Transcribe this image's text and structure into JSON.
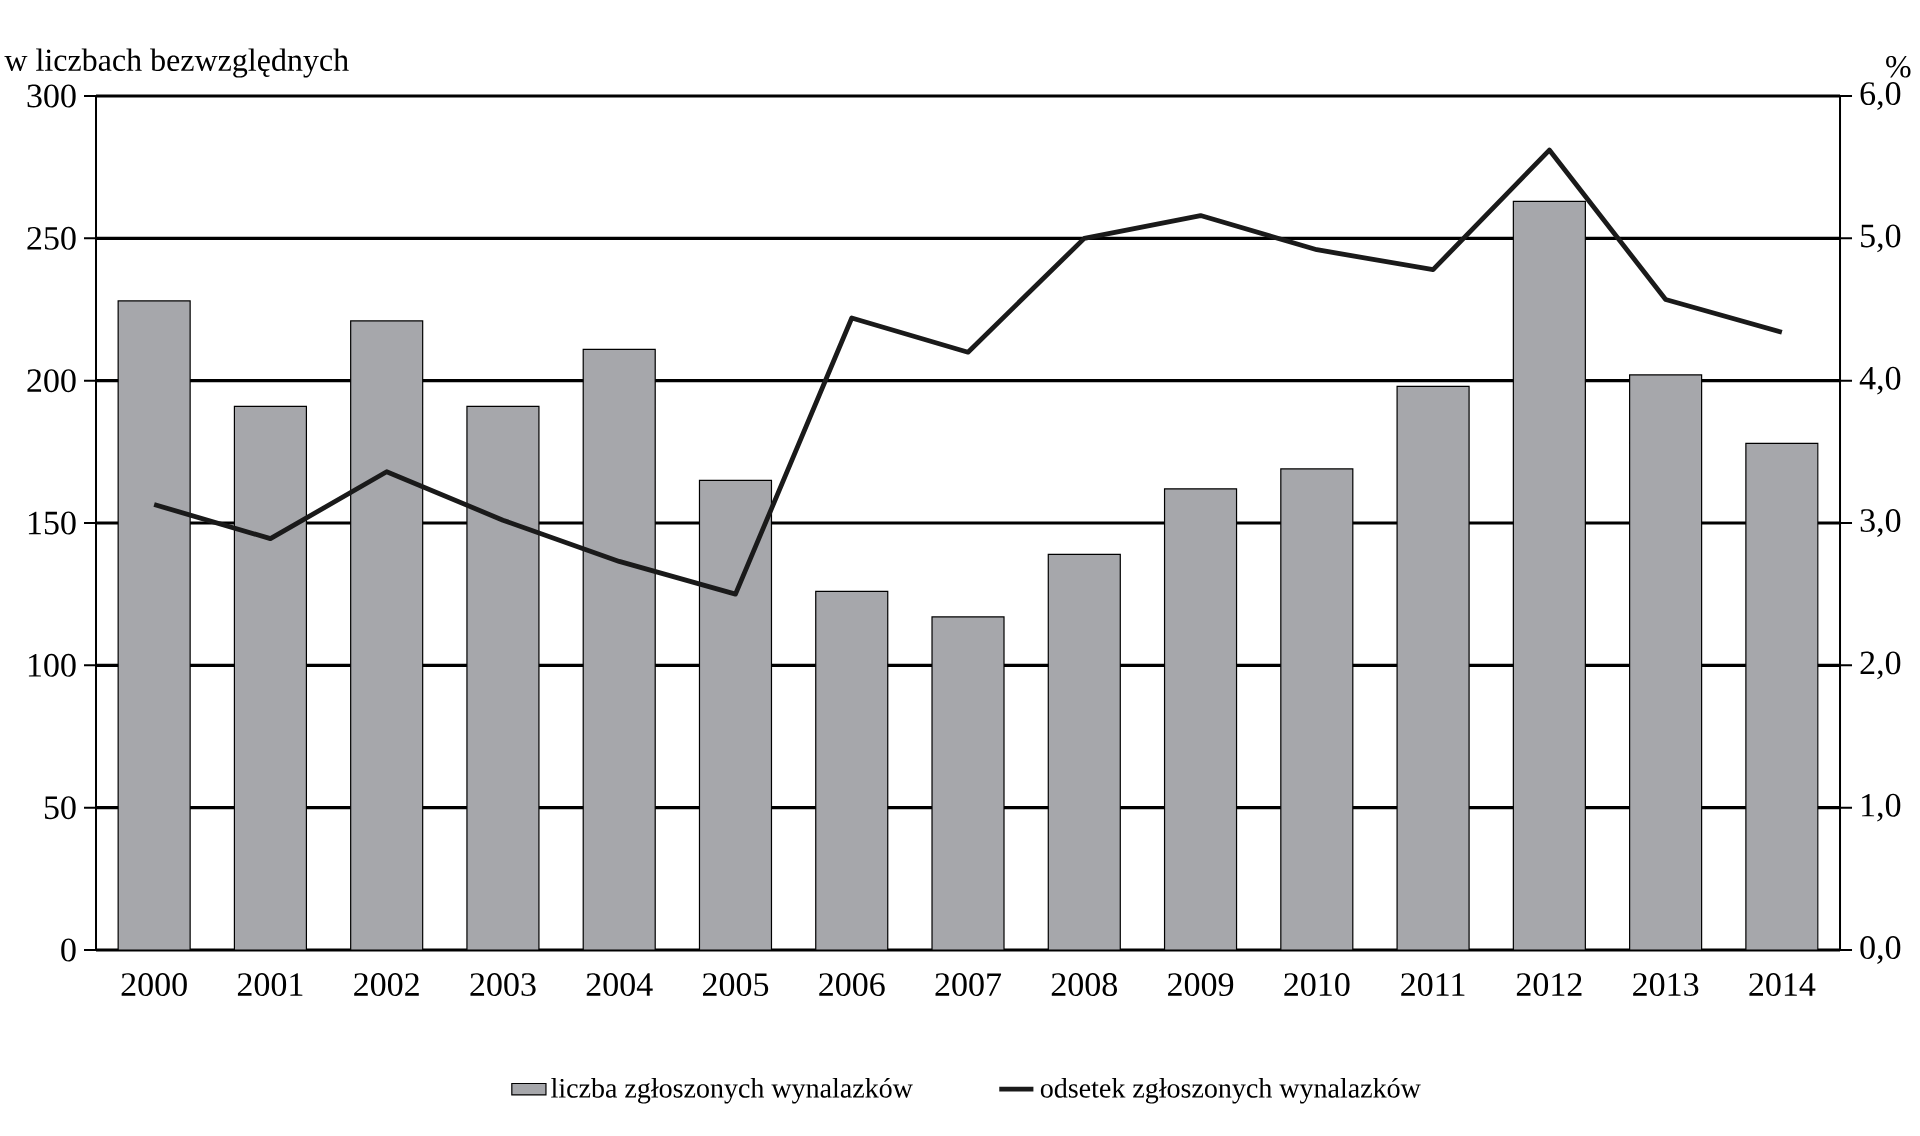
{
  "chart_data": {
    "type": "bar",
    "categories": [
      "2000",
      "2001",
      "2002",
      "2003",
      "2004",
      "2005",
      "2006",
      "2007",
      "2008",
      "2009",
      "2010",
      "2011",
      "2012",
      "2013",
      "2014"
    ],
    "series": [
      {
        "name": "liczba zgłoszonych wynalazków",
        "color": "#a6a7ab",
        "values": [
          228,
          191,
          221,
          191,
          211,
          165,
          126,
          117,
          139,
          162,
          169,
          198,
          263,
          202,
          178
        ]
      },
      {
        "name": "odsetek zgłoszonych wynalazków",
        "type": "line",
        "axis": "y2",
        "color": "#1a1a1a",
        "values": [
          3.13,
          2.89,
          3.36,
          3.02,
          2.73,
          2.5,
          4.44,
          4.2,
          5.0,
          5.16,
          4.92,
          4.78,
          5.62,
          4.57,
          4.34
        ]
      }
    ],
    "ylabel": "w liczbach bezwzględnych",
    "y2label": "%",
    "ylim": [
      0,
      300
    ],
    "yticks": [
      0,
      50,
      100,
      150,
      200,
      250,
      300
    ],
    "y2lim": [
      0,
      6
    ],
    "y2ticks": [
      {
        "value": 0,
        "label": "0,0"
      },
      {
        "value": 1,
        "label": "1,0"
      },
      {
        "value": 2,
        "label": "2,0"
      },
      {
        "value": 3,
        "label": "3,0"
      },
      {
        "value": 4,
        "label": "4,0"
      },
      {
        "value": 5,
        "label": "5,0"
      },
      {
        "value": 6,
        "label": "6,0"
      }
    ],
    "grid": "y",
    "legend": "bottom"
  }
}
